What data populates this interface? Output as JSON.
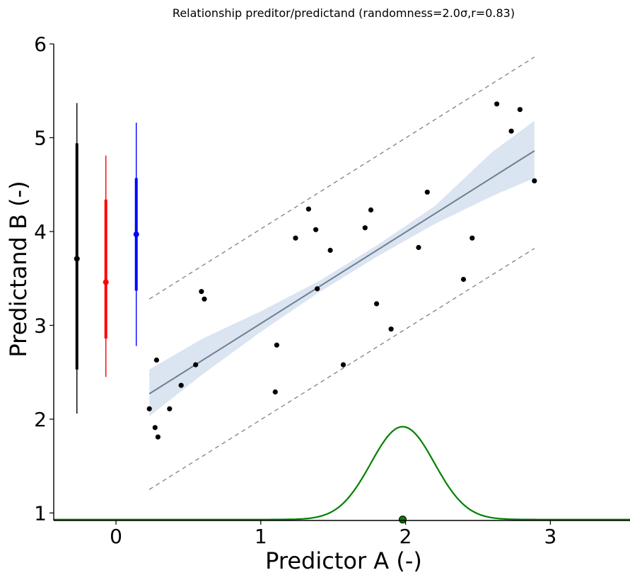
{
  "chart_data": {
    "type": "scatter",
    "title": "Relationship preditor/predictand (randomness=2.0σ,r=0.83)",
    "xlabel": "Predictor A (-)",
    "ylabel": "Predictand B (-)",
    "xlim": [
      -0.43,
      3.55
    ],
    "ylim": [
      0.92,
      6.0
    ],
    "xticks": [
      {
        "value": 0,
        "label": "0"
      },
      {
        "value": 1,
        "label": "1"
      },
      {
        "value": 2,
        "label": "2"
      },
      {
        "value": 3,
        "label": "3"
      }
    ],
    "yticks": [
      {
        "value": 1,
        "label": "1"
      },
      {
        "value": 2,
        "label": "2"
      },
      {
        "value": 3,
        "label": "3"
      },
      {
        "value": 4,
        "label": "4"
      },
      {
        "value": 5,
        "label": "5"
      },
      {
        "value": 6,
        "label": "6"
      }
    ],
    "grid": false,
    "points": {
      "color": "#000000",
      "x": [
        0.23,
        0.27,
        0.28,
        0.29,
        0.37,
        0.45,
        0.55,
        0.59,
        0.61,
        1.1,
        1.11,
        1.24,
        1.33,
        1.38,
        1.39,
        1.48,
        1.57,
        1.72,
        1.76,
        1.8,
        1.9,
        2.09,
        2.15,
        2.4,
        2.46,
        2.63,
        2.73,
        2.79,
        2.89
      ],
      "y": [
        2.11,
        1.91,
        2.63,
        1.81,
        2.11,
        2.36,
        2.58,
        3.36,
        3.28,
        2.29,
        2.79,
        3.93,
        4.24,
        4.02,
        3.39,
        3.8,
        2.58,
        4.04,
        4.23,
        3.23,
        2.96,
        3.83,
        4.42,
        3.49,
        3.93,
        5.36,
        5.07,
        5.3,
        4.54
      ]
    },
    "regression": {
      "color": "#708090",
      "x": [
        0.23,
        2.89
      ],
      "y": [
        2.27,
        4.86
      ]
    },
    "confidence_band": {
      "color": "#dbe4f1",
      "x": [
        0.23,
        0.6,
        1.0,
        1.4,
        1.8,
        2.2,
        2.6,
        2.89
      ],
      "lower": [
        2.03,
        2.48,
        2.93,
        3.35,
        3.73,
        4.08,
        4.38,
        4.57
      ],
      "upper": [
        2.53,
        2.86,
        3.15,
        3.47,
        3.85,
        4.27,
        4.85,
        5.18
      ]
    },
    "prediction_interval": {
      "color": "#808080",
      "x": [
        0.23,
        2.89
      ],
      "lower": [
        1.25,
        3.82
      ],
      "upper": [
        3.28,
        5.86
      ]
    },
    "distribution_curve": {
      "color": "#008000",
      "mean": 1.98,
      "sd": 0.22,
      "baseline": 0.93,
      "peak": 1.92,
      "marker": {
        "x": 1.98,
        "y": 0.93
      }
    },
    "error_bars": [
      {
        "color": "#000000",
        "x": -0.27,
        "center": 3.71,
        "inner": [
          2.53,
          4.94
        ],
        "outer": [
          2.06,
          5.37
        ]
      },
      {
        "color": "#ff0000",
        "x": -0.07,
        "center": 3.46,
        "inner": [
          2.86,
          4.34
        ],
        "outer": [
          2.45,
          4.81
        ]
      },
      {
        "color": "#0000ff",
        "x": 0.14,
        "center": 3.97,
        "inner": [
          3.37,
          4.57
        ],
        "outer": [
          2.78,
          5.16
        ]
      }
    ]
  }
}
